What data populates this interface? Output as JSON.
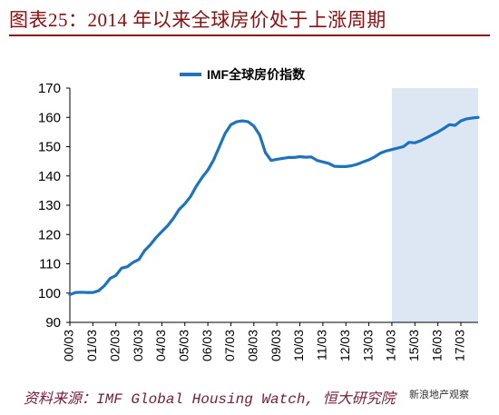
{
  "header": {
    "title": "图表25：2014 年以来全球房价处于上涨周期"
  },
  "footer": {
    "source": "资料来源：IMF Global Housing Watch, 恒大研究院",
    "watermark": "新浪地产观察"
  },
  "colors": {
    "title": "#8b0d0d",
    "line": "#1e73be",
    "shade": "#dde7f3",
    "axis": "#000000"
  },
  "chart_data": {
    "type": "line",
    "title": "",
    "xlabel": "",
    "ylabel": "",
    "ylim": [
      90,
      170
    ],
    "yticks": [
      90,
      100,
      110,
      120,
      130,
      140,
      150,
      160,
      170
    ],
    "x_tick_labels": [
      "00/03",
      "01/03",
      "02/03",
      "03/03",
      "04/03",
      "05/03",
      "06/03",
      "07/03",
      "08/03",
      "09/03",
      "10/03",
      "11/03",
      "12/03",
      "13/03",
      "14/03",
      "15/03",
      "16/03",
      "17/03"
    ],
    "grid": false,
    "legend": "top-center",
    "shaded_region": {
      "from": "14/03",
      "to": "17/12"
    },
    "series": [
      {
        "name": "IMF全球房价指数",
        "x": [
          "00/03",
          "00/06",
          "00/09",
          "00/12",
          "01/03",
          "01/06",
          "01/09",
          "01/12",
          "02/03",
          "02/06",
          "02/09",
          "02/12",
          "03/03",
          "03/06",
          "03/09",
          "03/12",
          "04/03",
          "04/06",
          "04/09",
          "04/12",
          "05/03",
          "05/06",
          "05/09",
          "05/12",
          "06/03",
          "06/06",
          "06/09",
          "06/12",
          "07/03",
          "07/06",
          "07/09",
          "07/12",
          "08/03",
          "08/06",
          "08/09",
          "08/12",
          "09/03",
          "09/06",
          "09/09",
          "09/12",
          "10/03",
          "10/06",
          "10/09",
          "10/12",
          "11/03",
          "11/06",
          "11/09",
          "11/12",
          "12/03",
          "12/06",
          "12/09",
          "12/12",
          "13/03",
          "13/06",
          "13/09",
          "13/12",
          "14/03",
          "14/06",
          "14/09",
          "14/12",
          "15/03",
          "15/06",
          "15/09",
          "15/12",
          "16/03",
          "16/06",
          "16/09",
          "16/12",
          "17/03",
          "17/06",
          "17/09",
          "17/12"
        ],
        "values": [
          99.5,
          100.2,
          100.3,
          100.2,
          100.2,
          100.8,
          102.5,
          105.0,
          106.0,
          108.5,
          109.0,
          110.5,
          111.5,
          114.5,
          116.5,
          119.0,
          121.0,
          123.0,
          125.5,
          128.5,
          130.5,
          133.0,
          136.5,
          139.5,
          142.0,
          145.5,
          150.0,
          154.5,
          157.5,
          158.5,
          158.8,
          158.5,
          157.0,
          154.0,
          148.0,
          145.3,
          145.7,
          146.0,
          146.3,
          146.3,
          146.6,
          146.4,
          146.5,
          145.3,
          144.8,
          144.3,
          143.3,
          143.2,
          143.2,
          143.5,
          144.0,
          144.8,
          145.5,
          146.5,
          147.8,
          148.5,
          149.0,
          149.5,
          150.0,
          151.5,
          151.3,
          152.0,
          153.0,
          154.0,
          155.0,
          156.2,
          157.5,
          157.3,
          158.8,
          159.5,
          159.8,
          160.0
        ]
      }
    ]
  }
}
